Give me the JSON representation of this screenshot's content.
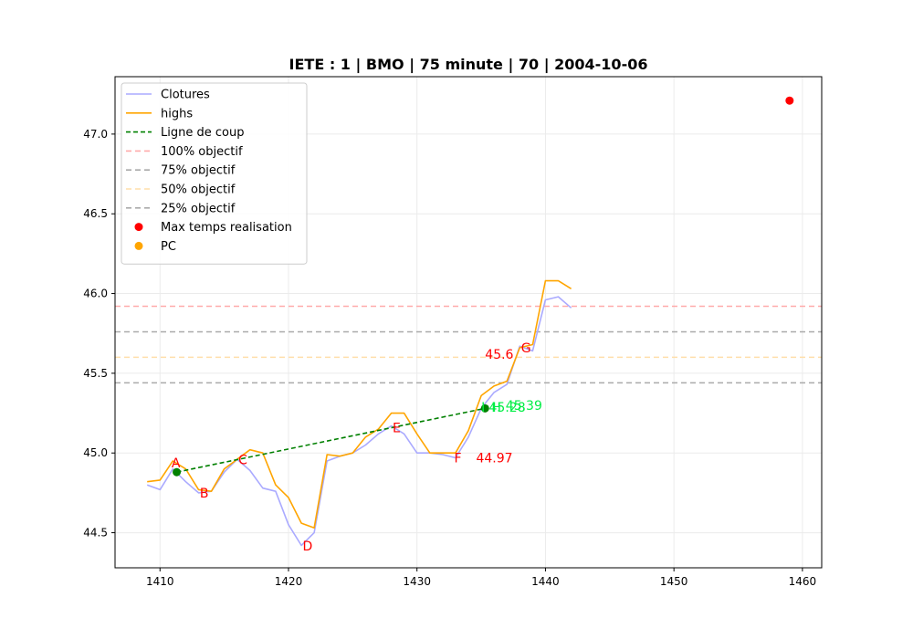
{
  "chart_data": {
    "type": "line",
    "title": "IETE : 1 | BMO | 75 minute | 70 | 2004-10-06",
    "xlabel": "",
    "ylabel": "",
    "xlim": [
      1406.5,
      1461.5
    ],
    "ylim": [
      44.28,
      47.36
    ],
    "grid": true,
    "legend_position": "top-left",
    "x_ticks": [
      1410,
      1420,
      1430,
      1440,
      1450,
      1460
    ],
    "y_ticks": [
      44.5,
      45.0,
      45.5,
      46.0,
      46.5,
      47.0
    ],
    "x_tick_labels": [
      "1410",
      "1420",
      "1430",
      "1440",
      "1450",
      "1460"
    ],
    "y_tick_labels": [
      "44.5",
      "45.0",
      "45.5",
      "46.0",
      "46.5",
      "47.0"
    ],
    "legend": [
      {
        "label": "Clotures",
        "kind": "line",
        "color": "#aaaaff",
        "dash": ""
      },
      {
        "label": "highs",
        "kind": "line",
        "color": "#ffa500",
        "dash": ""
      },
      {
        "label": "Ligne de coup",
        "kind": "line",
        "color": "#008000",
        "dash": "5,3"
      },
      {
        "label": "100% objectif",
        "kind": "line",
        "color": "#ffaaaa",
        "dash": "6,4"
      },
      {
        "label": "75% objectif",
        "kind": "line",
        "color": "#aaaaaa",
        "dash": "6,4"
      },
      {
        "label": "50% objectif",
        "kind": "line",
        "color": "#ffdfaa",
        "dash": "6,4"
      },
      {
        "label": "25% objectif",
        "kind": "line",
        "color": "#aaaaaa",
        "dash": "6,4"
      },
      {
        "label": "Max temps realisation",
        "kind": "point",
        "color": "#ff0000"
      },
      {
        "label": "PC",
        "kind": "point",
        "color": "#ffa500"
      }
    ],
    "series": [
      {
        "name": "Clotures",
        "color": "#aaaaff",
        "x": [
          1409,
          1410,
          1411,
          1412,
          1413,
          1414,
          1415,
          1416,
          1417,
          1418,
          1419,
          1420,
          1421,
          1422,
          1423,
          1424,
          1425,
          1426,
          1427,
          1428,
          1429,
          1430,
          1431,
          1432,
          1433,
          1434,
          1435,
          1436,
          1437,
          1438,
          1439,
          1440,
          1441,
          1442
        ],
        "y": [
          44.8,
          44.77,
          44.9,
          44.82,
          44.75,
          44.76,
          44.88,
          44.96,
          44.89,
          44.78,
          44.76,
          44.55,
          44.42,
          44.5,
          44.95,
          44.98,
          45.0,
          45.05,
          45.12,
          45.17,
          45.12,
          45.0,
          45.0,
          44.99,
          44.97,
          45.1,
          45.28,
          45.38,
          45.43,
          45.67,
          45.64,
          45.96,
          45.98,
          45.91
        ]
      },
      {
        "name": "highs",
        "color": "#ffa500",
        "x": [
          1409,
          1410,
          1411,
          1412,
          1413,
          1414,
          1415,
          1416,
          1417,
          1418,
          1419,
          1420,
          1421,
          1422,
          1423,
          1424,
          1425,
          1426,
          1427,
          1428,
          1429,
          1430,
          1431,
          1432,
          1433,
          1434,
          1435,
          1436,
          1437,
          1438,
          1439,
          1440,
          1441,
          1442
        ],
        "y": [
          44.82,
          44.83,
          44.95,
          44.9,
          44.77,
          44.76,
          44.9,
          44.96,
          45.02,
          45.0,
          44.8,
          44.72,
          44.56,
          44.53,
          44.99,
          44.98,
          45.0,
          45.1,
          45.15,
          45.25,
          45.25,
          45.12,
          45.0,
          45.0,
          45.0,
          45.14,
          45.36,
          45.42,
          45.45,
          45.66,
          45.68,
          46.08,
          46.08,
          46.03
        ]
      }
    ],
    "trade_line": {
      "name": "Ligne de coup",
      "color": "#008000",
      "x": [
        1411.3,
        1435.3
      ],
      "y": [
        44.88,
        45.28
      ]
    },
    "trade_points": [
      {
        "x": 1411.3,
        "y": 44.88,
        "color": "#008000"
      },
      {
        "x": 1435.3,
        "y": 45.28,
        "color": "#008000"
      }
    ],
    "objectives": [
      {
        "name": "100% objectif",
        "y": 45.92,
        "color": "#ffaaaa"
      },
      {
        "name": "75% objectif",
        "y": 45.76,
        "color": "#aaaaaa"
      },
      {
        "name": "50% objectif",
        "y": 45.6,
        "color": "#ffdfaa"
      },
      {
        "name": "25% objectif",
        "y": 45.44,
        "color": "#aaaaaa"
      }
    ],
    "max_time_point": {
      "x": 1459,
      "y": 47.21,
      "color": "#ff0000"
    },
    "annotations": [
      {
        "text": "A",
        "x": 1410.9,
        "y": 44.91,
        "color": "#ff0000"
      },
      {
        "text": "B",
        "x": 1413.1,
        "y": 44.72,
        "color": "#ff0000"
      },
      {
        "text": "C",
        "x": 1416.1,
        "y": 44.93,
        "color": "#ff0000"
      },
      {
        "text": "D",
        "x": 1421.1,
        "y": 44.39,
        "color": "#ff0000"
      },
      {
        "text": "E",
        "x": 1428.1,
        "y": 45.13,
        "color": "#ff0000"
      },
      {
        "text": "F",
        "x": 1432.9,
        "y": 44.94,
        "color": "#ff0000"
      },
      {
        "text": "44.97",
        "x": 1434.6,
        "y": 44.94,
        "color": "#ff0000"
      },
      {
        "text": "G",
        "x": 1438.1,
        "y": 45.63,
        "color": "#ff0000"
      },
      {
        "text": "45.6",
        "x": 1435.3,
        "y": 45.59,
        "color": "#ff0000"
      },
      {
        "text": "45.39",
        "x": 1436.9,
        "y": 45.27,
        "color": "#00ee44"
      },
      {
        "text": "45.28",
        "x": 1435.6,
        "y": 45.26,
        "color": "#00ee44"
      },
      {
        "text": "I",
        "x": 1435.0,
        "y": 45.26,
        "color": "#00ee44"
      },
      {
        "text": "H",
        "x": 1435.8,
        "y": 45.26,
        "color": "#00ee44"
      }
    ]
  }
}
